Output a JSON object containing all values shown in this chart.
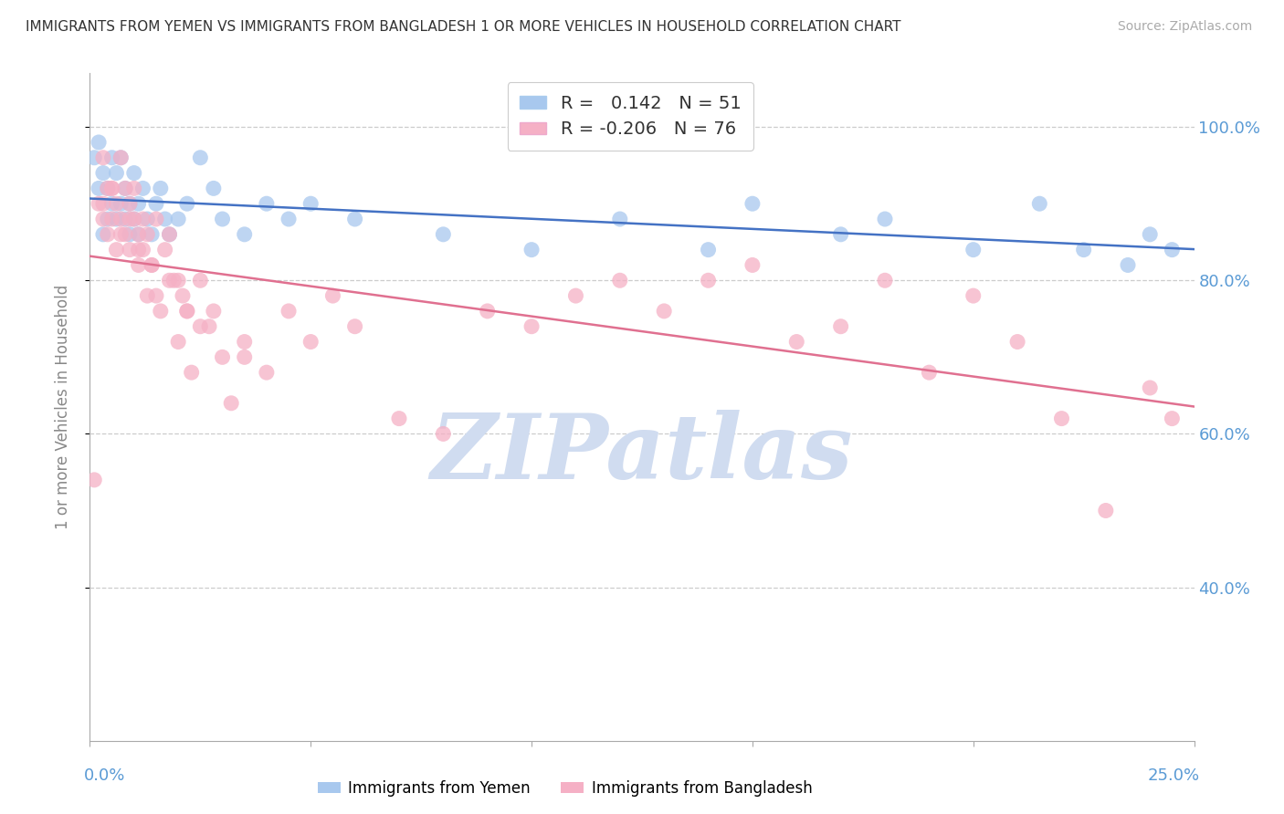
{
  "title": "IMMIGRANTS FROM YEMEN VS IMMIGRANTS FROM BANGLADESH 1 OR MORE VEHICLES IN HOUSEHOLD CORRELATION CHART",
  "source": "Source: ZipAtlas.com",
  "ylabel": "1 or more Vehicles in Household",
  "R_yemen": 0.142,
  "N_yemen": 51,
  "R_bangladesh": -0.206,
  "N_bangladesh": 76,
  "legend_yemen": "Immigrants from Yemen",
  "legend_bangladesh": "Immigrants from Bangladesh",
  "blue_scatter": "#A8C8EE",
  "pink_scatter": "#F5B0C5",
  "blue_line": "#4472C4",
  "pink_line": "#E07090",
  "axis_color": "#5B9BD5",
  "grid_color": "#CCCCCC",
  "title_color": "#333333",
  "ylabel_color": "#888888",
  "watermark_text": "ZIPatlas",
  "watermark_color": "#D0DCF0",
  "xlim": [
    0.0,
    25.0
  ],
  "ylim": [
    20.0,
    107.0
  ],
  "yticks": [
    40.0,
    60.0,
    80.0,
    100.0
  ],
  "ytick_labels": [
    "40.0%",
    "60.0%",
    "80.0%",
    "100.0%"
  ],
  "yemen_x": [
    0.1,
    0.2,
    0.2,
    0.3,
    0.3,
    0.4,
    0.4,
    0.5,
    0.5,
    0.6,
    0.6,
    0.7,
    0.7,
    0.8,
    0.8,
    0.9,
    0.9,
    1.0,
    1.0,
    1.1,
    1.1,
    1.2,
    1.3,
    1.4,
    1.5,
    1.6,
    1.7,
    1.8,
    2.0,
    2.2,
    2.5,
    2.8,
    3.0,
    3.5,
    4.0,
    4.5,
    5.0,
    6.0,
    8.0,
    10.0,
    12.0,
    14.0,
    15.0,
    17.0,
    18.0,
    20.0,
    21.5,
    22.5,
    23.5,
    24.0,
    24.5
  ],
  "yemen_y": [
    96,
    92,
    98,
    86,
    94,
    88,
    92,
    90,
    96,
    88,
    94,
    90,
    96,
    88,
    92,
    86,
    90,
    88,
    94,
    90,
    86,
    92,
    88,
    86,
    90,
    92,
    88,
    86,
    88,
    90,
    96,
    92,
    88,
    86,
    90,
    88,
    90,
    88,
    86,
    84,
    88,
    84,
    90,
    86,
    88,
    84,
    90,
    84,
    82,
    86,
    84
  ],
  "bangladesh_x": [
    0.1,
    0.2,
    0.3,
    0.3,
    0.4,
    0.4,
    0.5,
    0.5,
    0.6,
    0.6,
    0.7,
    0.7,
    0.8,
    0.8,
    0.9,
    0.9,
    1.0,
    1.0,
    1.1,
    1.1,
    1.2,
    1.2,
    1.3,
    1.3,
    1.4,
    1.5,
    1.5,
    1.6,
    1.7,
    1.8,
    1.9,
    2.0,
    2.0,
    2.1,
    2.2,
    2.3,
    2.5,
    2.5,
    2.8,
    3.0,
    3.2,
    3.5,
    4.0,
    4.5,
    5.0,
    5.5,
    6.0,
    7.0,
    8.0,
    9.0,
    10.0,
    11.0,
    12.0,
    13.0,
    14.0,
    15.0,
    16.0,
    17.0,
    18.0,
    19.0,
    20.0,
    21.0,
    22.0,
    23.0,
    24.0,
    24.5,
    0.3,
    0.5,
    0.7,
    0.9,
    1.1,
    1.4,
    1.8,
    2.2,
    2.7,
    3.5
  ],
  "bangladesh_y": [
    54,
    90,
    96,
    88,
    92,
    86,
    92,
    88,
    84,
    90,
    96,
    88,
    92,
    86,
    90,
    84,
    88,
    92,
    86,
    82,
    88,
    84,
    78,
    86,
    82,
    78,
    88,
    76,
    84,
    86,
    80,
    72,
    80,
    78,
    76,
    68,
    74,
    80,
    76,
    70,
    64,
    72,
    68,
    76,
    72,
    78,
    74,
    62,
    60,
    76,
    74,
    78,
    80,
    76,
    80,
    82,
    72,
    74,
    80,
    68,
    78,
    72,
    62,
    50,
    66,
    62,
    90,
    92,
    86,
    88,
    84,
    82,
    80,
    76,
    74,
    70
  ]
}
